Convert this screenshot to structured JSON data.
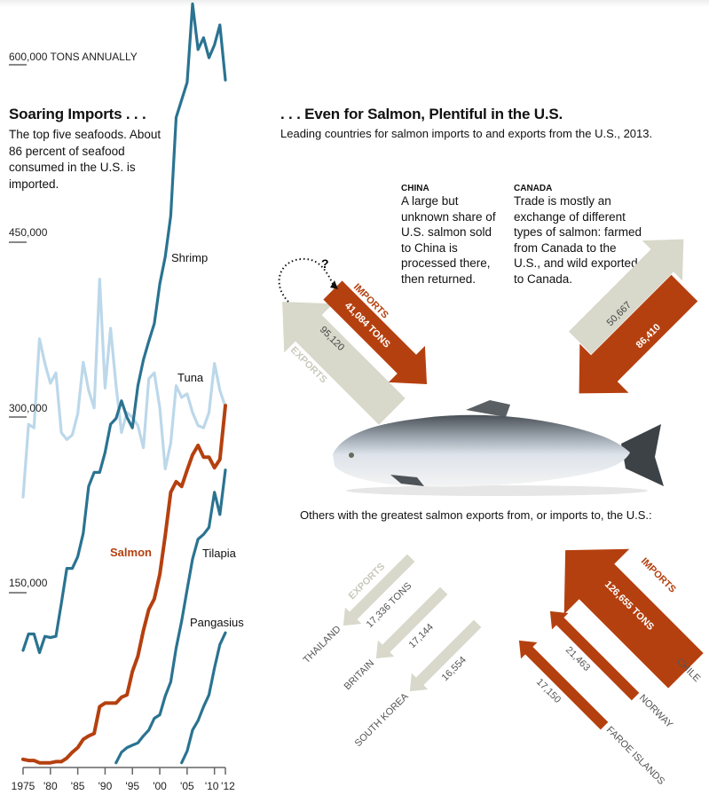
{
  "left": {
    "title": "Soaring Imports . . .",
    "description": "The top five seafoods. About 86 percent of seafood consumed in the U.S. is imported."
  },
  "right": {
    "title": ". . . Even for Salmon, Plentiful in the U.S.",
    "subtitle": "Leading countries for salmon imports to and exports from the U.S., 2013.",
    "others_caption": "Others with the greatest salmon exports from, or imports to, the U.S.:",
    "china": {
      "heading": "CHINA",
      "note": "A large but unknown share of U.S. salmon sold to China is processed there, then returned.",
      "imports_label": "IMPORTS",
      "imports_value": "41,084 TONS",
      "exports_label": "EXPORTS",
      "exports_value": "95,120",
      "question": "?"
    },
    "canada": {
      "heading": "CANADA",
      "note": "Trade is mostly an exchange of different types of salmon: farmed from Canada to the U.S., and wild exported to Canada.",
      "exports_value": "50,667",
      "imports_value": "86,410"
    },
    "exports": {
      "label": "EXPORTS",
      "items": [
        {
          "country": "THAILAND",
          "value": "17,336 TONS"
        },
        {
          "country": "BRITAIN",
          "value": "17,144"
        },
        {
          "country": "SOUTH KOREA",
          "value": "16,554"
        }
      ]
    },
    "imports": {
      "label": "IMPORTS",
      "items": [
        {
          "country": "CHILE",
          "value": "126,655 TONS"
        },
        {
          "country": "NORWAY",
          "value": "21,463"
        },
        {
          "country": "FAROE ISLANDS",
          "value": "17,150"
        }
      ]
    },
    "colors": {
      "imports": "#b5400f",
      "exports": "#d8d8cb"
    }
  },
  "chart_data": {
    "type": "line",
    "ylabel": "600,000 TONS ANNUALLY",
    "ylim": [
      0,
      600000
    ],
    "yticks": [
      {
        "value": 600000,
        "label": "600,000 TONS ANNUALLY"
      },
      {
        "value": 450000,
        "label": "450,000"
      },
      {
        "value": 300000,
        "label": "300,000"
      },
      {
        "value": 150000,
        "label": "150,000"
      }
    ],
    "xlim": [
      1975,
      2012
    ],
    "xticks": [
      {
        "value": 1975,
        "label": "1975"
      },
      {
        "value": 1980,
        "label": "'80"
      },
      {
        "value": 1985,
        "label": "'85"
      },
      {
        "value": 1990,
        "label": "'90"
      },
      {
        "value": 1995,
        "label": "'95"
      },
      {
        "value": 2000,
        "label": "'00"
      },
      {
        "value": 2005,
        "label": "'05"
      },
      {
        "value": 2010,
        "label": "'10"
      },
      {
        "value": 2012,
        "label": "'12"
      }
    ],
    "grid": false,
    "series": [
      {
        "name": "Tuna",
        "color": "#bcd8ea",
        "x_start": 1975,
        "values": [
          231000,
          293000,
          290000,
          366000,
          345000,
          328000,
          337000,
          286000,
          280000,
          284000,
          302000,
          346000,
          322000,
          307000,
          417000,
          324000,
          375000,
          326000,
          286000,
          303000,
          299000,
          292000,
          273000,
          332000,
          337000,
          307000,
          255000,
          277000,
          326000,
          316000,
          319000,
          303000,
          292000,
          290000,
          303000,
          345000,
          322000,
          308000
        ]
      },
      {
        "name": "Shrimp",
        "color": "#2a7391",
        "x_start": 1975,
        "values": [
          100000,
          114000,
          114000,
          98000,
          112000,
          111000,
          112000,
          140000,
          170000,
          170000,
          180000,
          200000,
          240000,
          252000,
          252000,
          269000,
          293000,
          298000,
          313000,
          299000,
          290000,
          326000,
          348000,
          364000,
          379000,
          413000,
          436000,
          471000,
          555000,
          570000,
          585000,
          652000,
          613000,
          623000,
          606000,
          617000,
          634000,
          587000
        ]
      },
      {
        "name": "Salmon",
        "color": "#b5400f",
        "x_start": 1975,
        "values": [
          7000,
          6000,
          6000,
          4000,
          4000,
          4000,
          5000,
          5000,
          8000,
          13000,
          17000,
          24000,
          27000,
          29000,
          52000,
          55000,
          55000,
          55000,
          60000,
          62000,
          82000,
          95000,
          117000,
          135000,
          144000,
          165000,
          198000,
          235000,
          244000,
          240000,
          254000,
          267000,
          275000,
          265000,
          265000,
          256000,
          263000,
          309000
        ]
      },
      {
        "name": "Tilapia",
        "color": "#2a7391",
        "x_start": 1992,
        "values": [
          4000,
          13000,
          17000,
          19000,
          21000,
          27000,
          32000,
          42000,
          45000,
          61000,
          73000,
          102000,
          125000,
          152000,
          178000,
          195000,
          199000,
          205000,
          235000,
          216000,
          254000
        ]
      },
      {
        "name": "Pangasius",
        "color": "#2a7391",
        "x_start": 2004,
        "values": [
          4000,
          14000,
          32000,
          40000,
          52000,
          62000,
          85000,
          105000,
          115000
        ]
      }
    ]
  }
}
